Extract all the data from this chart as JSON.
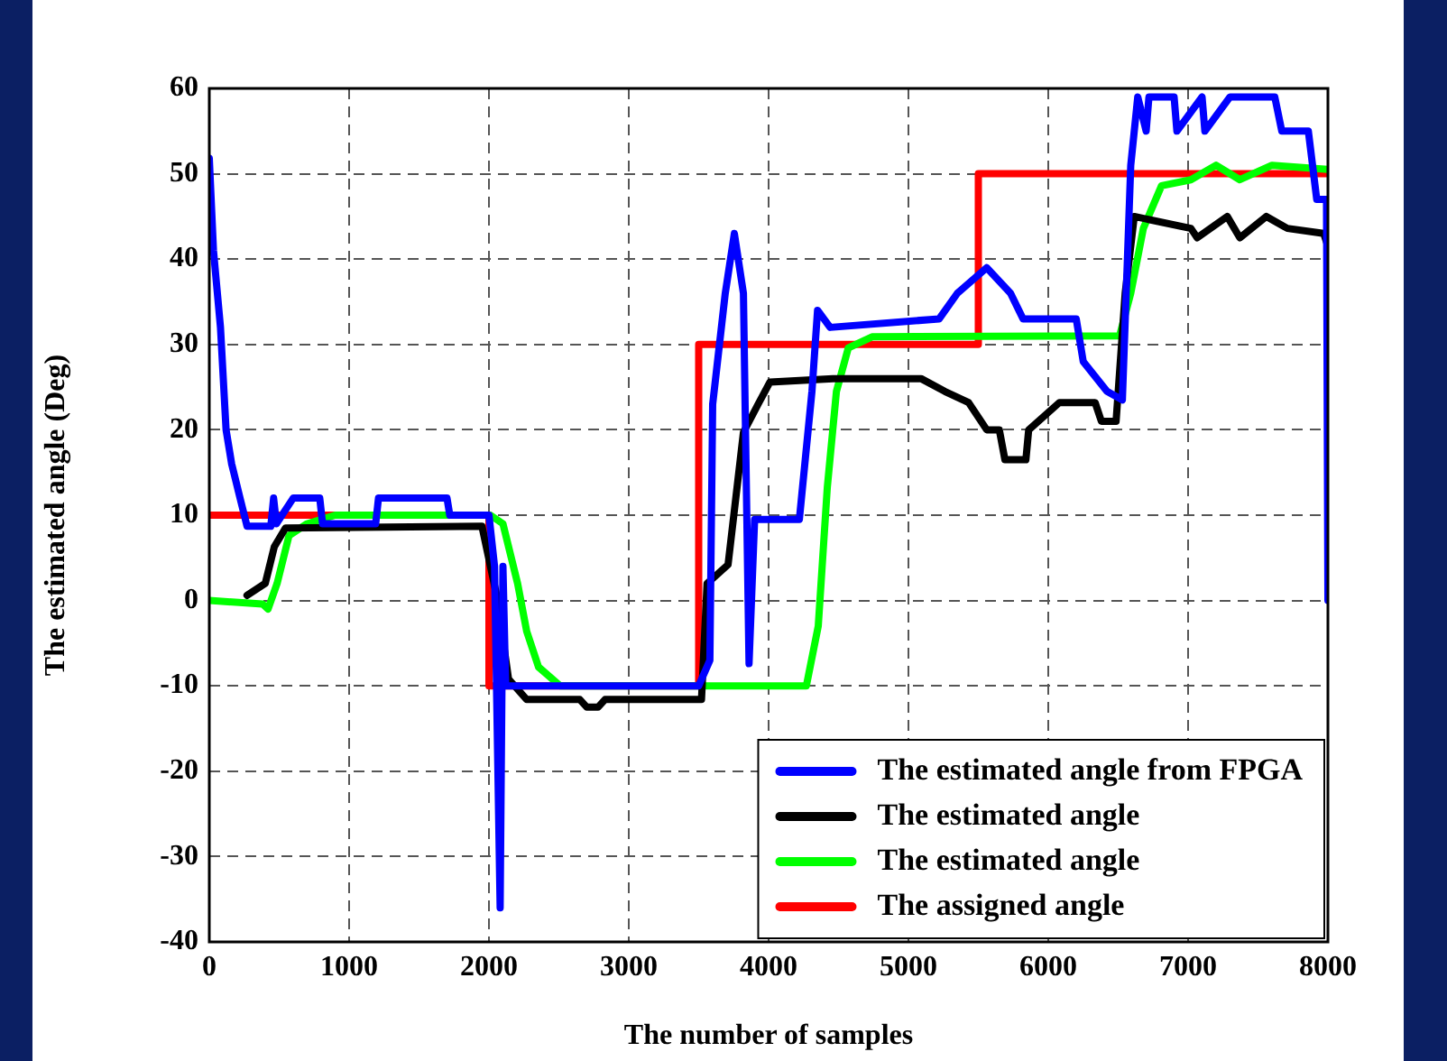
{
  "chart_data": {
    "type": "line",
    "xlabel": "The number of samples",
    "ylabel": "The estimated angle (Deg)",
    "xlim": [
      0,
      8000
    ],
    "ylim": [
      -40,
      60
    ],
    "xticks": [
      0,
      1000,
      2000,
      3000,
      4000,
      5000,
      6000,
      7000,
      8000
    ],
    "yticks": [
      -40,
      -30,
      -20,
      -10,
      0,
      10,
      20,
      30,
      40,
      50,
      60
    ],
    "grid": true,
    "legend": "bottom right",
    "marker": "none",
    "line_style": "solid",
    "series": [
      {
        "name": "The estimated angle from FPGA",
        "color": "#0000ff",
        "x": [
          0,
          30,
          80,
          120,
          160,
          220,
          270,
          440,
          460,
          480,
          600,
          790,
          810,
          1000,
          1190,
          1210,
          1500,
          1700,
          1720,
          2000,
          2040,
          2080,
          2100,
          2120,
          2200,
          3500,
          3580,
          3600,
          3690,
          3755,
          3820,
          3860,
          3900,
          3925,
          4220,
          4310,
          4350,
          4440,
          5220,
          5350,
          5560,
          5730,
          5820,
          6200,
          6250,
          6420,
          6530,
          6590,
          6640,
          6700,
          6720,
          6900,
          6920,
          7100,
          7120,
          7300,
          7320,
          7620,
          7670,
          7860,
          7920,
          7990,
          8000
        ],
        "values": [
          51.8,
          41,
          32,
          20,
          16,
          12,
          8.7,
          8.7,
          12,
          9,
          12,
          12,
          9,
          9,
          9,
          12,
          12,
          12,
          10,
          10,
          4,
          -36,
          4,
          -10,
          -10,
          -10,
          -7,
          23,
          36,
          43,
          36,
          -7.4,
          9.5,
          9.5,
          9.5,
          24.5,
          34,
          32,
          33,
          36,
          39,
          36,
          33,
          33,
          28,
          24.5,
          23.5,
          51,
          59,
          55,
          59,
          59,
          55,
          59,
          55,
          59,
          59,
          59,
          55,
          55,
          47,
          47,
          0
        ]
      },
      {
        "name": "The estimated angle",
        "color": "#000000",
        "x": [
          270,
          400,
          465,
          545,
          1950,
          2055,
          2140,
          2270,
          2650,
          2700,
          2780,
          2830,
          3520,
          3560,
          3710,
          3820,
          3925,
          4010,
          4460,
          5090,
          5260,
          5430,
          5560,
          5650,
          5690,
          5840,
          5860,
          6080,
          6335,
          6380,
          6485,
          6550,
          6615,
          7020,
          7065,
          7280,
          7370,
          7560,
          7710,
          7970,
          8000
        ],
        "values": [
          0.6,
          2,
          6.3,
          8.5,
          8.7,
          0.6,
          -9.2,
          -11.6,
          -11.6,
          -12.5,
          -12.5,
          -11.6,
          -11.6,
          2,
          4.2,
          19.7,
          23,
          25.6,
          26,
          26,
          24.5,
          23.2,
          20,
          20,
          16.5,
          16.5,
          20,
          23.2,
          23.2,
          21,
          21,
          36,
          45,
          43.6,
          42.5,
          45,
          42.5,
          45,
          43.6,
          43,
          41.5
        ]
      },
      {
        "name": "The estimated angle",
        "color": "#00ff00",
        "x": [
          0,
          380,
          420,
          485,
          570,
          700,
          900,
          2010,
          2100,
          2205,
          2270,
          2355,
          2510,
          4270,
          4355,
          4420,
          4485,
          4570,
          4740,
          6510,
          6590,
          6680,
          6810,
          7020,
          7200,
          7370,
          7600,
          8000
        ],
        "values": [
          0,
          -0.4,
          -1,
          2,
          7.6,
          9,
          10,
          10,
          9,
          2,
          -3.6,
          -7.8,
          -10,
          -10,
          -3,
          13.3,
          24.5,
          29.6,
          30.9,
          31,
          36,
          43.6,
          48.6,
          49.3,
          51,
          49.3,
          51,
          50.5
        ]
      },
      {
        "name": "The assigned angle",
        "color": "#ff0000",
        "x": [
          0,
          2000,
          2000,
          3500,
          3500,
          5500,
          5500,
          8000
        ],
        "values": [
          10,
          10,
          -10,
          -10,
          30,
          30,
          50,
          50
        ]
      }
    ]
  }
}
